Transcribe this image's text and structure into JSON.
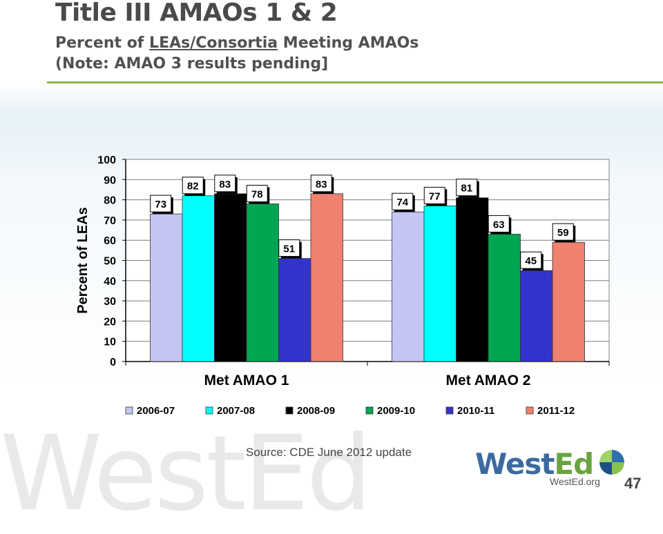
{
  "slide": {
    "title": "Title III AMAOs 1 & 2",
    "subtitle_part1": "Percent of ",
    "subtitle_underlined": "LEAs/Consortia",
    "subtitle_part2": " Meeting AMAOs",
    "subtitle_line2": "(Note: AMAO 3 results pending]",
    "source": "Source: CDE June 2012 update",
    "logo_west": "West",
    "logo_ed": "Ed",
    "website": "WestEd.org",
    "page_number": "47",
    "watermark": "WestEd"
  },
  "chart_data": {
    "type": "bar",
    "title": "",
    "xlabel": "",
    "ylabel": "Percent of LEAs",
    "ylim": [
      0,
      100
    ],
    "yticks": [
      0,
      10,
      20,
      30,
      40,
      50,
      60,
      70,
      80,
      90,
      100
    ],
    "categories": [
      "Met AMAO 1",
      "Met AMAO 2"
    ],
    "series": [
      {
        "name": "2006-07",
        "color": "#c5c5f3",
        "values": [
          73,
          74
        ]
      },
      {
        "name": "2007-08",
        "color": "#00ffff",
        "values": [
          82,
          77
        ]
      },
      {
        "name": "2008-09",
        "color": "#000000",
        "values": [
          83,
          81
        ]
      },
      {
        "name": "2009-10",
        "color": "#00a651",
        "values": [
          78,
          63
        ]
      },
      {
        "name": "2010-11",
        "color": "#3333cc",
        "values": [
          51,
          45
        ]
      },
      {
        "name": "2011-12",
        "color": "#f08070",
        "values": [
          83,
          59
        ]
      }
    ],
    "data_labels": true,
    "grid": true,
    "legend_position": "bottom"
  }
}
